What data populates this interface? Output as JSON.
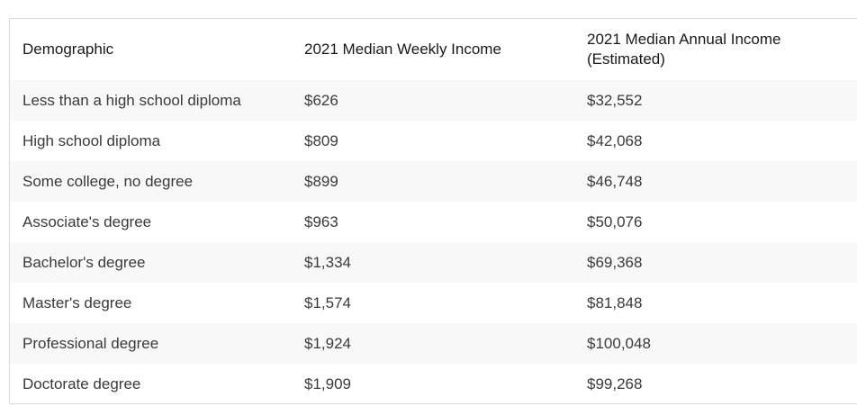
{
  "table": {
    "headers": [
      "Demographic",
      "2021 Median Weekly Income",
      "2021 Median Annual Income (Estimated)"
    ],
    "rows": [
      [
        "Less than a high school diploma",
        "$626",
        "$32,552"
      ],
      [
        "High school diploma",
        "$809",
        "$42,068"
      ],
      [
        "Some college, no degree",
        "$899",
        "$46,748"
      ],
      [
        "Associate's degree",
        "$963",
        "$50,076"
      ],
      [
        "Bachelor's degree",
        "$1,334",
        "$69,368"
      ],
      [
        "Master's degree",
        "$1,574",
        "$81,848"
      ],
      [
        "Professional degree",
        "$1,924",
        "$100,048"
      ],
      [
        "Doctorate degree",
        "$1,909",
        "$99,268"
      ]
    ]
  }
}
